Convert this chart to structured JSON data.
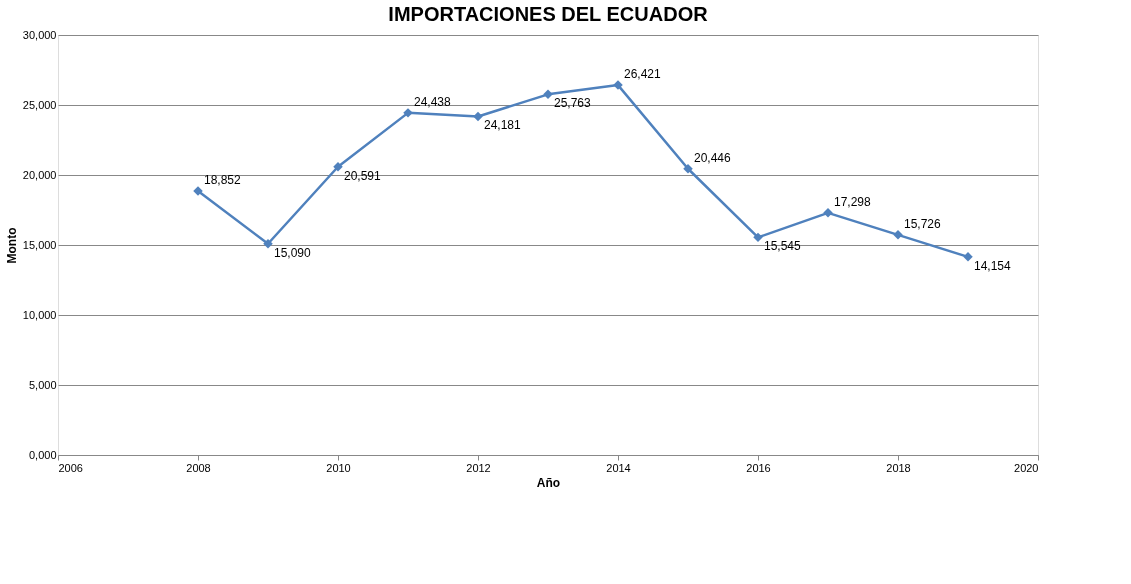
{
  "chart_data": {
    "type": "line",
    "title": "IMPORTACIONES DEL ECUADOR",
    "xlabel": "Año",
    "ylabel": "Monto",
    "x": [
      2008,
      2009,
      2010,
      2011,
      2012,
      2013,
      2014,
      2015,
      2016,
      2017,
      2018,
      2019
    ],
    "series": [
      {
        "color": "#4f81bd",
        "values": [
          18852,
          15090,
          20591,
          24438,
          24181,
          25763,
          26421,
          20446,
          15545,
          17298,
          15726,
          14154
        ],
        "value_labels": [
          "18,852",
          "15,090",
          "20,591",
          "24,438",
          "24,181",
          "25,763",
          "26,421",
          "20,446",
          "15,545",
          "17,298",
          "15,726",
          "14,154"
        ]
      }
    ],
    "xlim": [
      2006,
      2020
    ],
    "xticks": [
      2006,
      2008,
      2010,
      2012,
      2014,
      2016,
      2018,
      2020
    ],
    "ylim": [
      0,
      30000
    ],
    "yticks": [
      {
        "value": 0,
        "label": "0,000"
      },
      {
        "value": 5000,
        "label": "5,000"
      },
      {
        "value": 10000,
        "label": "10,000"
      },
      {
        "value": 15000,
        "label": "15,000"
      },
      {
        "value": 20000,
        "label": "20,000"
      },
      {
        "value": 25000,
        "label": "25,000"
      },
      {
        "value": 30000,
        "label": "30,000"
      }
    ],
    "grid": "y",
    "marker": "diamond",
    "line_style": "solid"
  }
}
